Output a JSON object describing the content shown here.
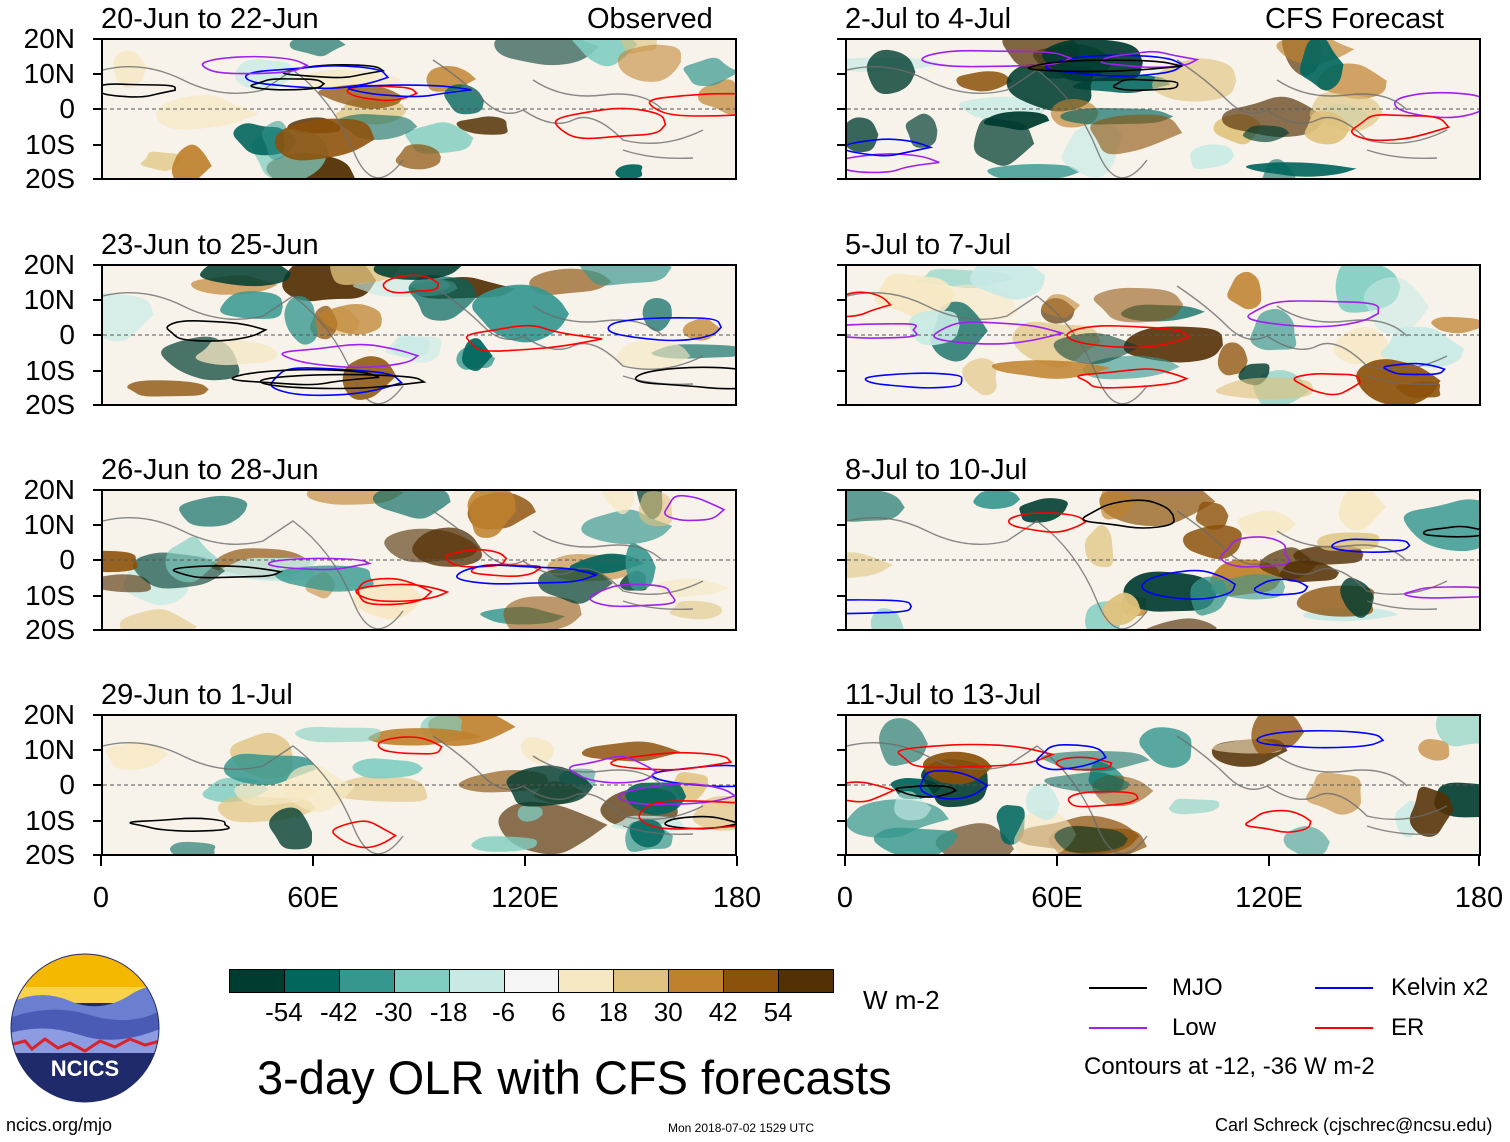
{
  "header": {
    "observed_label": "Observed",
    "forecast_label": "CFS Forecast"
  },
  "panels": {
    "observed": [
      {
        "title": "20-Jun to 22-Jun"
      },
      {
        "title": "23-Jun to 25-Jun"
      },
      {
        "title": "26-Jun to 28-Jun"
      },
      {
        "title": "29-Jun to 1-Jul"
      }
    ],
    "forecast": [
      {
        "title": "2-Jul to 4-Jul"
      },
      {
        "title": "5-Jul to 7-Jul"
      },
      {
        "title": "8-Jul to 10-Jul"
      },
      {
        "title": "11-Jul to 13-Jul"
      }
    ]
  },
  "axes": {
    "lat_labels": [
      "20N",
      "10N",
      "0",
      "10S",
      "20S"
    ],
    "lon_labels": [
      "0",
      "60E",
      "120E",
      "180"
    ]
  },
  "colorbar": {
    "labels": [
      "-54",
      "-42",
      "-30",
      "-18",
      "-6",
      "6",
      "18",
      "30",
      "42",
      "54"
    ],
    "unit": "W m-2",
    "colors": [
      "#003c30",
      "#01665e",
      "#35978f",
      "#80cdc1",
      "#c7eae5",
      "#f5f5f5",
      "#f6e8c3",
      "#dfc27d",
      "#bf812d",
      "#8c510a",
      "#543005"
    ]
  },
  "legend": {
    "mjo": {
      "label": "MJO",
      "color": "#000000"
    },
    "kelvin": {
      "label": "Kelvin x2",
      "color": "#0000ff"
    },
    "low": {
      "label": "Low",
      "color": "#a020f0"
    },
    "er": {
      "label": "ER",
      "color": "#ff0000"
    },
    "note": "Contours at -12, -36 W m-2"
  },
  "footer": {
    "title": "3-day OLR with CFS forecasts",
    "logo_text": "NCICS",
    "site": "ncics.org/mjo",
    "timestamp": "Mon 2018-07-02 1529 UTC",
    "credit": "Carl Schreck (cjschrec@ncsu.edu)"
  }
}
